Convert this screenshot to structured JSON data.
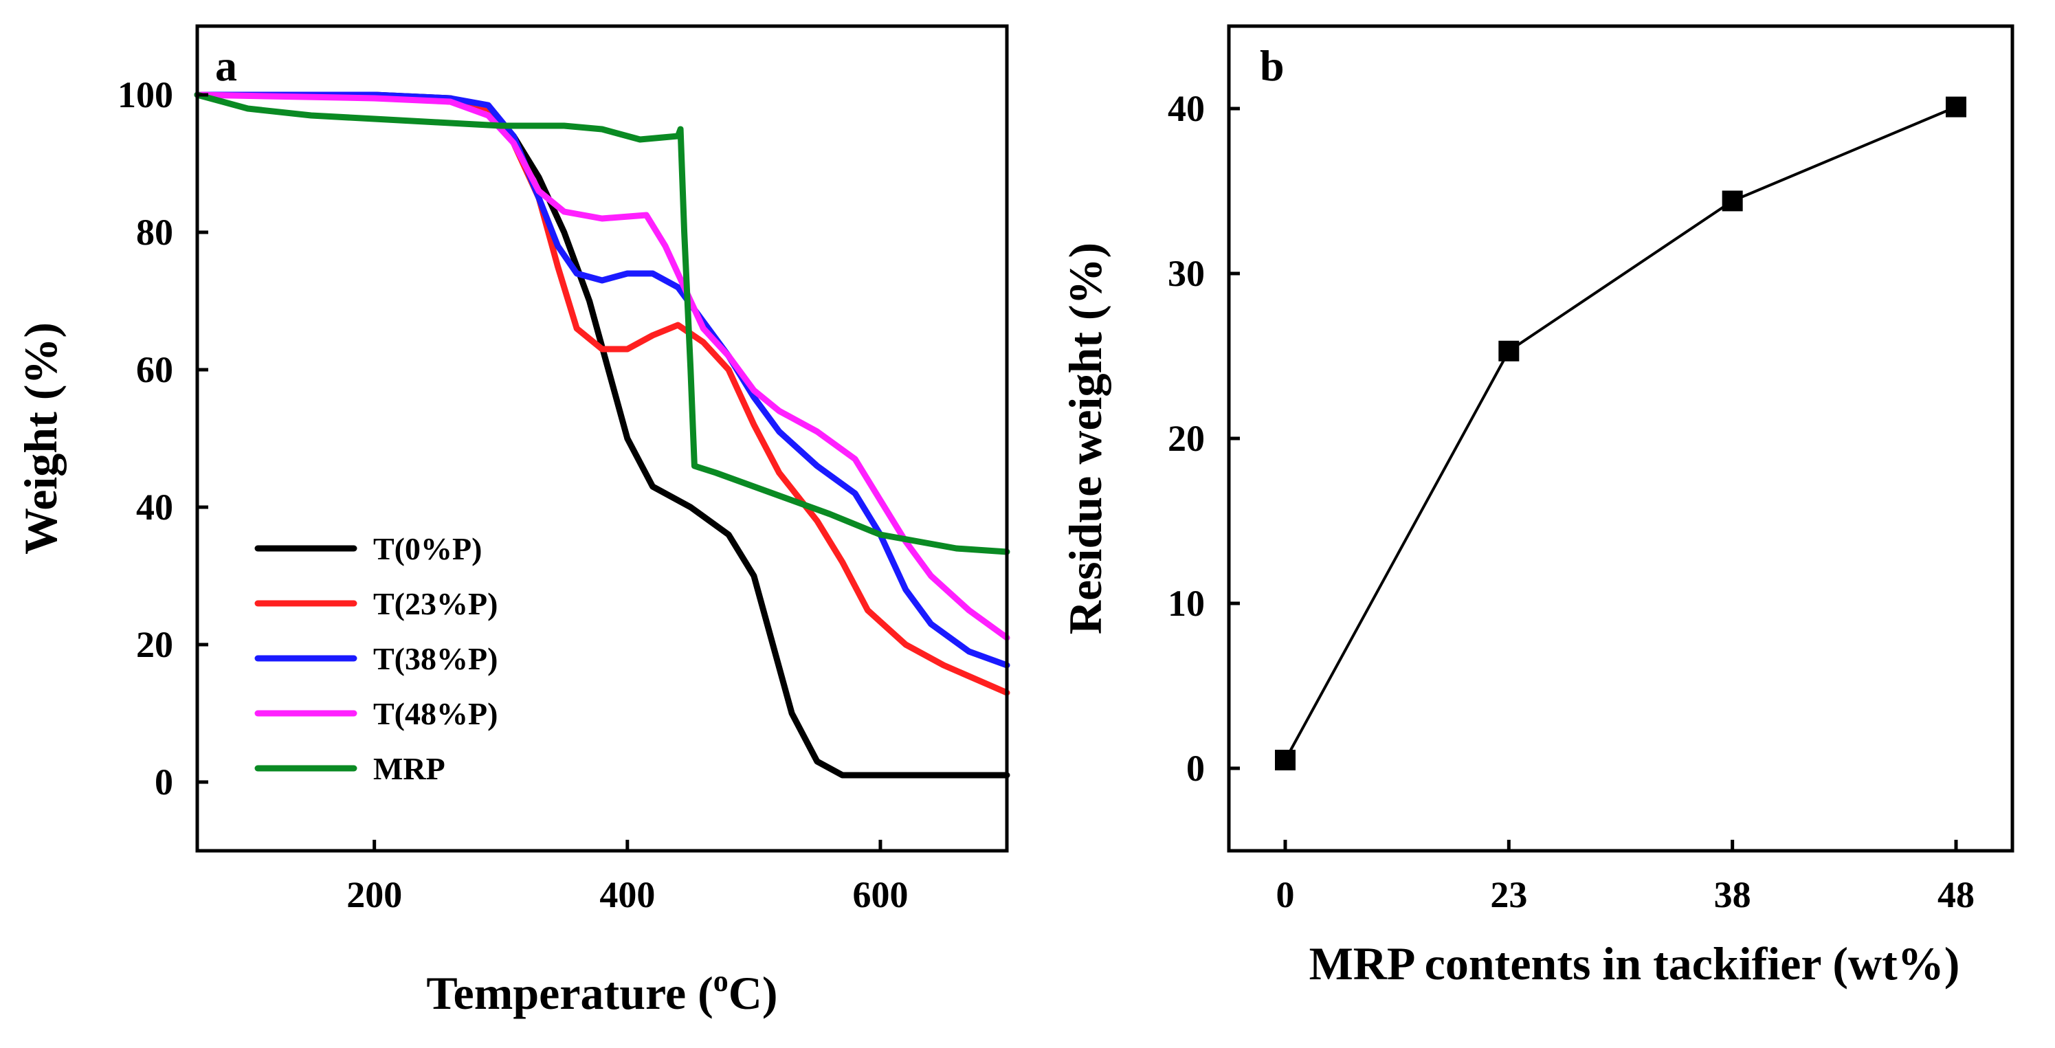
{
  "chart_data": [
    {
      "type": "line",
      "panel_label": "a",
      "xlabel_main": "Temperature (",
      "xlabel_sup": "o",
      "xlabel_end": "C)",
      "ylabel": "Weight (%)",
      "xlim": [
        60,
        700
      ],
      "ylim": [
        -10,
        110
      ],
      "xticks": [
        200,
        400,
        600
      ],
      "yticks": [
        0,
        20,
        40,
        60,
        80,
        100
      ],
      "legend_position": "lower-left",
      "series": [
        {
          "name": "T(0%P)",
          "color": "#000000",
          "points": [
            [
              60,
              100
            ],
            [
              200,
              100
            ],
            [
              260,
              99.5
            ],
            [
              290,
              98
            ],
            [
              310,
              94
            ],
            [
              330,
              88
            ],
            [
              350,
              80
            ],
            [
              370,
              70
            ],
            [
              385,
              60
            ],
            [
              400,
              50
            ],
            [
              420,
              43
            ],
            [
              450,
              40
            ],
            [
              480,
              36
            ],
            [
              500,
              30
            ],
            [
              515,
              20
            ],
            [
              530,
              10
            ],
            [
              550,
              3
            ],
            [
              570,
              1
            ],
            [
              600,
              1
            ],
            [
              650,
              1
            ],
            [
              700,
              1
            ]
          ]
        },
        {
          "name": "T(23%P)",
          "color": "#ff2020",
          "points": [
            [
              60,
              100
            ],
            [
              200,
              100
            ],
            [
              260,
              99
            ],
            [
              290,
              98
            ],
            [
              310,
              93
            ],
            [
              330,
              85
            ],
            [
              345,
              75
            ],
            [
              360,
              66
            ],
            [
              380,
              63
            ],
            [
              400,
              63
            ],
            [
              420,
              65
            ],
            [
              440,
              66.5
            ],
            [
              460,
              64
            ],
            [
              480,
              60
            ],
            [
              500,
              52
            ],
            [
              520,
              45
            ],
            [
              550,
              38
            ],
            [
              570,
              32
            ],
            [
              590,
              25
            ],
            [
              620,
              20
            ],
            [
              650,
              17
            ],
            [
              700,
              13
            ]
          ]
        },
        {
          "name": "T(38%P)",
          "color": "#1a1aff",
          "points": [
            [
              60,
              100
            ],
            [
              200,
              100
            ],
            [
              260,
              99.5
            ],
            [
              290,
              98.5
            ],
            [
              310,
              94
            ],
            [
              330,
              85
            ],
            [
              345,
              78
            ],
            [
              360,
              74
            ],
            [
              380,
              73
            ],
            [
              400,
              74
            ],
            [
              420,
              74
            ],
            [
              440,
              72
            ],
            [
              460,
              67
            ],
            [
              480,
              62
            ],
            [
              500,
              56
            ],
            [
              520,
              51
            ],
            [
              550,
              46
            ],
            [
              580,
              42
            ],
            [
              600,
              36
            ],
            [
              620,
              28
            ],
            [
              640,
              23
            ],
            [
              670,
              19
            ],
            [
              700,
              17
            ]
          ]
        },
        {
          "name": "T(48%P)",
          "color": "#ff20ff",
          "points": [
            [
              60,
              100
            ],
            [
              200,
              99.5
            ],
            [
              260,
              99
            ],
            [
              290,
              97
            ],
            [
              310,
              93
            ],
            [
              330,
              86
            ],
            [
              350,
              83
            ],
            [
              380,
              82
            ],
            [
              415,
              82.5
            ],
            [
              430,
              78
            ],
            [
              445,
              72
            ],
            [
              460,
              66
            ],
            [
              480,
              62
            ],
            [
              500,
              57
            ],
            [
              520,
              54
            ],
            [
              550,
              51
            ],
            [
              580,
              47
            ],
            [
              600,
              41
            ],
            [
              620,
              35
            ],
            [
              640,
              30
            ],
            [
              670,
              25
            ],
            [
              700,
              21
            ]
          ]
        },
        {
          "name": "MRP",
          "color": "#0a8a23",
          "points": [
            [
              60,
              100
            ],
            [
              100,
              98
            ],
            [
              150,
              97
            ],
            [
              200,
              96.5
            ],
            [
              250,
              96
            ],
            [
              300,
              95.5
            ],
            [
              350,
              95.5
            ],
            [
              380,
              95
            ],
            [
              410,
              93.5
            ],
            [
              440,
              94
            ],
            [
              442,
              95
            ],
            [
              445,
              80
            ],
            [
              450,
              60
            ],
            [
              453,
              46
            ],
            [
              470,
              45
            ],
            [
              500,
              43
            ],
            [
              530,
              41
            ],
            [
              560,
              39
            ],
            [
              600,
              36
            ],
            [
              630,
              35
            ],
            [
              660,
              34
            ],
            [
              700,
              33.5
            ]
          ]
        }
      ]
    },
    {
      "type": "line",
      "panel_label": "b",
      "xlabel": "MRP contents in tackifier (wt%)",
      "ylabel": "Residue weight (%)",
      "categories": [
        "0",
        "23",
        "38",
        "48"
      ],
      "values": [
        0.5,
        25.3,
        34.4,
        40.1
      ],
      "ylim": [
        -5,
        45
      ],
      "yticks": [
        0,
        10,
        20,
        30,
        40
      ],
      "color": "#000000",
      "marker": "square"
    }
  ]
}
